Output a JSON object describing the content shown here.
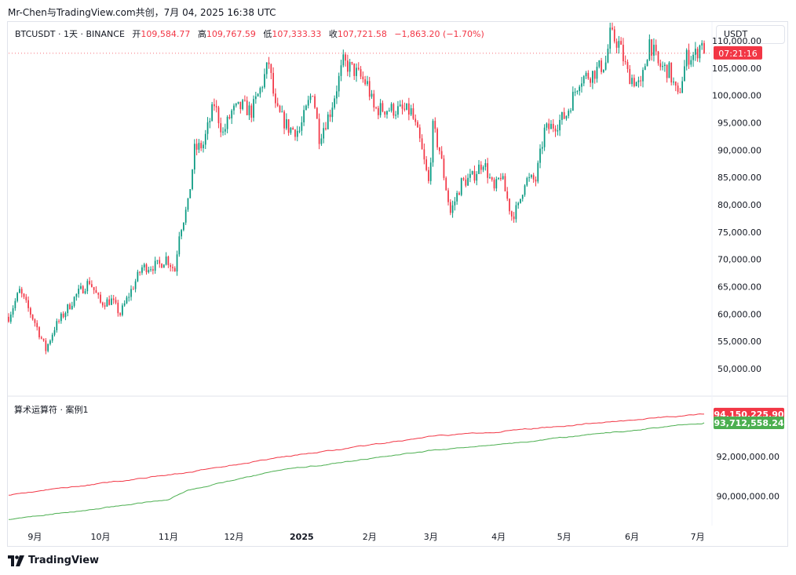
{
  "caption": "Mr-Chen与TradingView.com共创，7月 04, 2025 16:38 UTC",
  "legend": {
    "symbol": "BTCUSDT · 1天 · BINANCE",
    "open_label": "开",
    "open": "109,584.77",
    "high_label": "高",
    "high": "109,767.59",
    "low_label": "低",
    "low": "107,333.33",
    "close_label": "收",
    "close": "107,721.58",
    "change": "−1,863.20 (−1.70%)"
  },
  "currency_button": "USDT",
  "countdown": "07:21:16",
  "indicator_legend": "算术运算符 · 案例1",
  "indicator_values": {
    "red": "94,150,225.90",
    "green": "93,712,558.24"
  },
  "brand": "TradingView",
  "colors": {
    "up": "#089981",
    "down": "#f23645",
    "line_red": "#f23645",
    "line_green": "#4caf50"
  },
  "chart_data": [
    {
      "type": "candlestick",
      "x_tick_labels": [
        "9月",
        "10月",
        "11月",
        "12月",
        "2025",
        "2月",
        "3月",
        "4月",
        "5月",
        "6月",
        "7月"
      ],
      "y_tick_labels": [
        "110,000.00",
        "105,000.00",
        "100,000.00",
        "95,000.00",
        "90,000.00",
        "85,000.00",
        "80,000.00",
        "75,000.00",
        "70,000.00",
        "65,000.00",
        "60,000.00",
        "55,000.00",
        "50,000.00"
      ],
      "ylim": [
        47000,
        112000
      ],
      "last_price": 107721.58,
      "close_path": [
        [
          "2024-08-20",
          59500
        ],
        [
          "2024-08-25",
          64200
        ],
        [
          "2024-09-01",
          58500
        ],
        [
          "2024-09-06",
          53500
        ],
        [
          "2024-09-10",
          57500
        ],
        [
          "2024-09-15",
          60500
        ],
        [
          "2024-09-20",
          63500
        ],
        [
          "2024-09-26",
          66000
        ],
        [
          "2024-10-01",
          62000
        ],
        [
          "2024-10-06",
          62500
        ],
        [
          "2024-10-10",
          60000
        ],
        [
          "2024-10-14",
          63500
        ],
        [
          "2024-10-20",
          68500
        ],
        [
          "2024-10-28",
          69000
        ],
        [
          "2024-10-31",
          70300
        ],
        [
          "2024-11-04",
          68000
        ],
        [
          "2024-11-06",
          75000
        ],
        [
          "2024-11-10",
          80000
        ],
        [
          "2024-11-13",
          90000
        ],
        [
          "2024-11-17",
          91000
        ],
        [
          "2024-11-22",
          98500
        ],
        [
          "2024-11-26",
          93000
        ],
        [
          "2024-11-30",
          97000
        ],
        [
          "2024-12-05",
          98000
        ],
        [
          "2024-12-09",
          97000
        ],
        [
          "2024-12-13",
          101000
        ],
        [
          "2024-12-17",
          106000
        ],
        [
          "2024-12-20",
          97500
        ],
        [
          "2024-12-26",
          94000
        ],
        [
          "2024-12-31",
          93500
        ],
        [
          "2025-01-06",
          101000
        ],
        [
          "2025-01-09",
          92500
        ],
        [
          "2025-01-14",
          97000
        ],
        [
          "2025-01-20",
          106000
        ],
        [
          "2025-01-25",
          104500
        ],
        [
          "2025-01-31",
          102000
        ],
        [
          "2025-02-03",
          97500
        ],
        [
          "2025-02-10",
          97500
        ],
        [
          "2025-02-20",
          97000
        ],
        [
          "2025-02-24",
          91500
        ],
        [
          "2025-02-28",
          84000
        ],
        [
          "2025-03-02",
          94000
        ],
        [
          "2025-03-05",
          90000
        ],
        [
          "2025-03-10",
          78500
        ],
        [
          "2025-03-15",
          84000
        ],
        [
          "2025-03-20",
          85000
        ],
        [
          "2025-03-25",
          88000
        ],
        [
          "2025-03-30",
          82500
        ],
        [
          "2025-04-02",
          85500
        ],
        [
          "2025-04-07",
          78000
        ],
        [
          "2025-04-10",
          79500
        ],
        [
          "2025-04-13",
          84500
        ],
        [
          "2025-04-18",
          84500
        ],
        [
          "2025-04-22",
          93500
        ],
        [
          "2025-04-28",
          95000
        ],
        [
          "2025-05-02",
          96500
        ],
        [
          "2025-05-08",
          103000
        ],
        [
          "2025-05-14",
          104000
        ],
        [
          "2025-05-20",
          106000
        ],
        [
          "2025-05-22",
          111000
        ],
        [
          "2025-05-26",
          109500
        ],
        [
          "2025-05-30",
          104000
        ],
        [
          "2025-06-05",
          101500
        ],
        [
          "2025-06-09",
          110000
        ],
        [
          "2025-06-13",
          105500
        ],
        [
          "2025-06-18",
          104500
        ],
        [
          "2025-06-22",
          99500
        ],
        [
          "2025-06-26",
          107000
        ],
        [
          "2025-06-30",
          107500
        ],
        [
          "2025-07-02",
          109000
        ],
        [
          "2025-07-03",
          109584.77
        ],
        [
          "2025-07-04",
          107721.58
        ]
      ]
    },
    {
      "type": "line",
      "title": "算术运算符 · 案例1",
      "y_tick_labels": [
        "92,000,000.00",
        "90,000,000.00"
      ],
      "ylim": [
        88600000,
        94900000
      ],
      "series": [
        {
          "color": "#f23645",
          "last_value": 94150225.9,
          "points": [
            [
              "2024-08-20",
              90080000
            ],
            [
              "2024-10-01",
              90650000
            ],
            [
              "2024-11-10",
              91200000
            ],
            [
              "2024-12-20",
              91950000
            ],
            [
              "2025-01-25",
              92450000
            ],
            [
              "2025-02-28",
              93000000
            ],
            [
              "2025-04-10",
              93350000
            ],
            [
              "2025-05-20",
              93750000
            ],
            [
              "2025-07-04",
              94150225.9
            ]
          ]
        },
        {
          "color": "#4caf50",
          "last_value": 93712558.24,
          "points": [
            [
              "2024-08-20",
              88850000
            ],
            [
              "2024-10-01",
              89400000
            ],
            [
              "2024-11-01",
              89850000
            ],
            [
              "2024-11-10",
              90300000
            ],
            [
              "2024-12-20",
              91300000
            ],
            [
              "2025-01-25",
              91800000
            ],
            [
              "2025-02-28",
              92300000
            ],
            [
              "2025-04-10",
              92700000
            ],
            [
              "2025-05-20",
              93200000
            ],
            [
              "2025-07-04",
              93712558.24
            ]
          ]
        }
      ]
    }
  ]
}
